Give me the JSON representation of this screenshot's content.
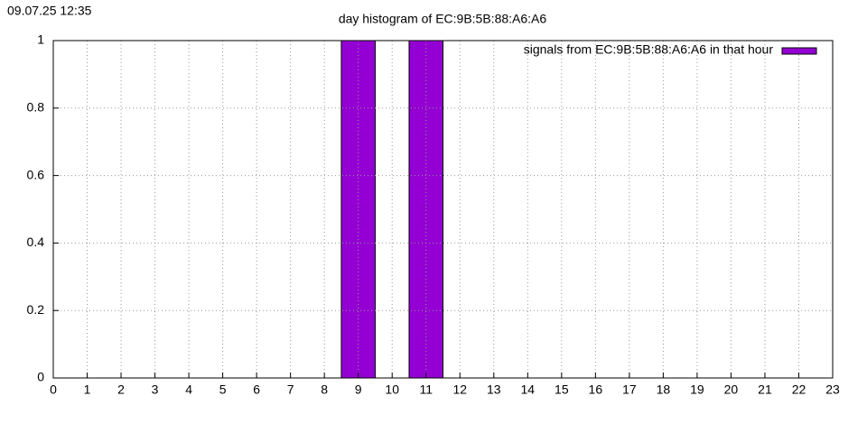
{
  "timestamp": "09.07.25 12:35",
  "chart_data": {
    "type": "bar",
    "title": "day histogram of EC:9B:5B:88:A6:A6",
    "x": [
      0,
      1,
      2,
      3,
      4,
      5,
      6,
      7,
      8,
      9,
      10,
      11,
      12,
      13,
      14,
      15,
      16,
      17,
      18,
      19,
      20,
      21,
      22,
      23
    ],
    "series": [
      {
        "name": "signals from EC:9B:5B:88:A6:A6 in that hour",
        "color": "#9400d3",
        "values": [
          0,
          0,
          0,
          0,
          0,
          0,
          0,
          0,
          0,
          1,
          0,
          1,
          0,
          0,
          0,
          0,
          0,
          0,
          0,
          0,
          0,
          0,
          0,
          0
        ]
      }
    ],
    "xlim": [
      0,
      23
    ],
    "xticks": [
      0,
      1,
      2,
      3,
      4,
      5,
      6,
      7,
      8,
      9,
      10,
      11,
      12,
      13,
      14,
      15,
      16,
      17,
      18,
      19,
      20,
      21,
      22,
      23
    ],
    "ylim": [
      0,
      1
    ],
    "yticks": [
      0,
      0.2,
      0.4,
      0.6,
      0.8,
      1
    ],
    "grid": true,
    "legend": "top-right"
  }
}
